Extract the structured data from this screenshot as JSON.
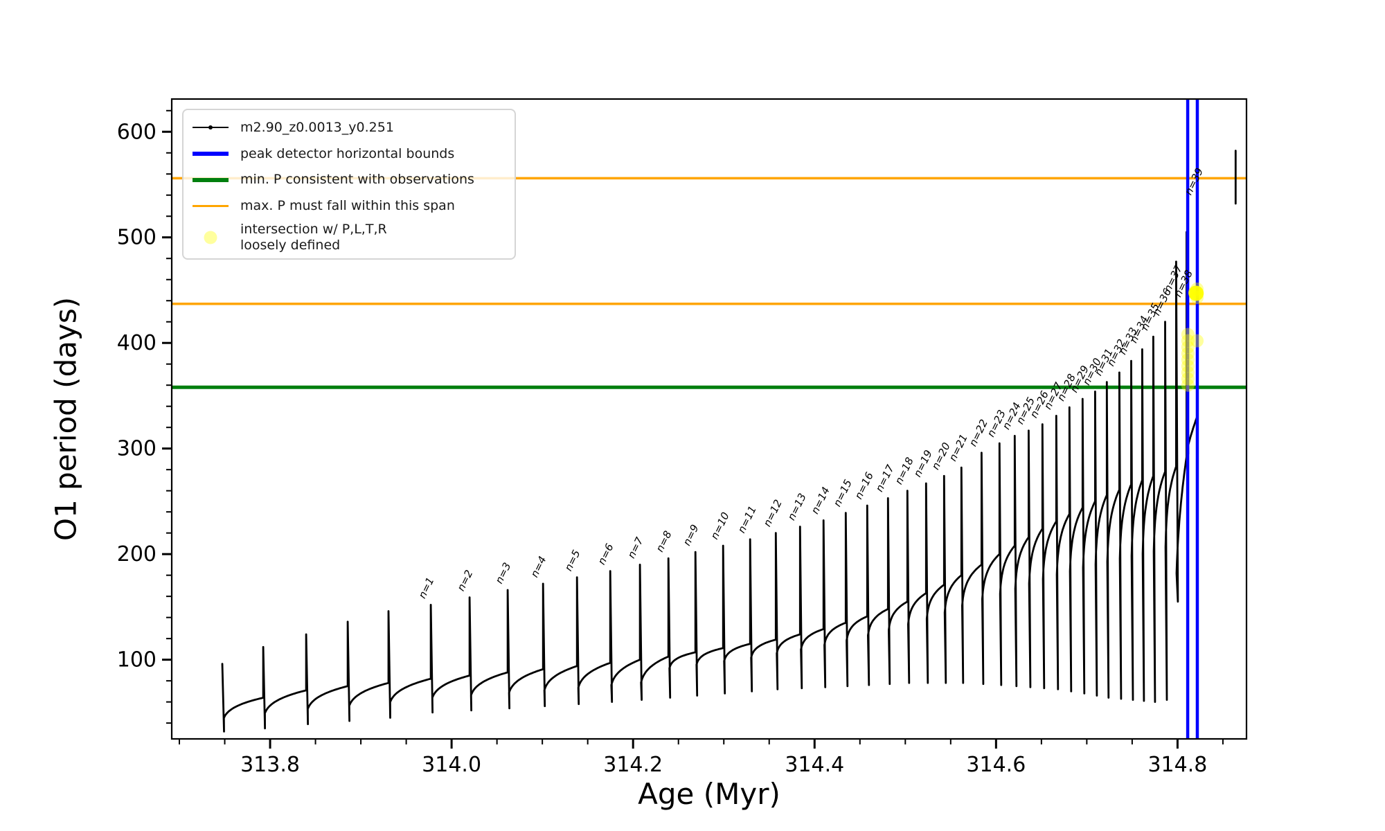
{
  "figure": {
    "xlabel": "Age (Myr)",
    "ylabel": "O1 period (days)"
  },
  "legend": {
    "entries": [
      {
        "kind": "line-marker",
        "color": "#000000",
        "label": "m2.90_z0.0013_y0.251"
      },
      {
        "kind": "thick-line",
        "color": "#0000ff",
        "label": "peak detector horizontal bounds"
      },
      {
        "kind": "thick-line",
        "color": "#007f0e",
        "label": "min. P consistent with observations"
      },
      {
        "kind": "line",
        "color": "#ffa500",
        "label": "max. P must fall within this span"
      },
      {
        "kind": "dot",
        "color": "rgba(255,255,0,0.38)",
        "label_line1": "intersection w/ P,L,T,R",
        "label_line2": "loosely defined"
      }
    ]
  },
  "chart_data": {
    "type": "line",
    "title": "",
    "xlabel": "Age (Myr)",
    "ylabel": "O1 period (days)",
    "xlim": [
      313.6916,
      314.876
    ],
    "ylim": [
      25,
      631
    ],
    "x_major_ticks": [
      313.8,
      314.0,
      314.2,
      314.4,
      314.6,
      314.8
    ],
    "x_minor_step": 0.05,
    "y_major_ticks": [
      100,
      200,
      300,
      400,
      500,
      600
    ],
    "y_minor_step": 20,
    "grid": false,
    "legend_position": "upper left",
    "series_label": "m2.90_z0.0013_y0.251",
    "colors": {
      "curve": "#000000",
      "bounds": "#0000ff",
      "min_p": "#007f0e",
      "max_p": "#ffa500",
      "intersection": "#ffff00"
    },
    "hlines": [
      {
        "y": 358,
        "color": "#007f0e",
        "width": 5,
        "meaning": "min. P consistent with observations"
      },
      {
        "y": 437,
        "color": "#ffa500",
        "width": 3.5,
        "meaning": "max. P span lower"
      },
      {
        "y": 556,
        "color": "#ffa500",
        "width": 3.5,
        "meaning": "max. P span upper"
      }
    ],
    "vlines": [
      {
        "x": 314.8112,
        "color": "#0000ff",
        "width": 4.5,
        "meaning": "peak detector left bound"
      },
      {
        "x": 314.8218,
        "color": "#0000ff",
        "width": 4.5,
        "meaning": "peak detector right bound"
      }
    ],
    "pulses_format": [
      "age_Myr",
      "peak_days",
      "dip_after_days",
      "shoulder_before_days",
      "n_label"
    ],
    "pulses": [
      [
        313.7473,
        96,
        32,
        60,
        null
      ],
      [
        313.7924,
        112,
        35,
        64,
        null
      ],
      [
        313.8397,
        124,
        39,
        71,
        null
      ],
      [
        313.8855,
        136,
        42,
        75,
        null
      ],
      [
        313.9305,
        146,
        45,
        78,
        null
      ],
      [
        313.9771,
        152,
        50,
        82,
        1
      ],
      [
        314.0198,
        159,
        52,
        85,
        2
      ],
      [
        314.0618,
        166,
        54,
        88,
        3
      ],
      [
        314.1008,
        172,
        56,
        91,
        4
      ],
      [
        314.1382,
        178,
        58,
        94,
        5
      ],
      [
        314.1748,
        184,
        60,
        97,
        6
      ],
      [
        314.2076,
        190,
        62,
        100,
        7
      ],
      [
        314.2389,
        196,
        64,
        103,
        8
      ],
      [
        314.2687,
        202,
        66,
        107,
        9
      ],
      [
        314.2992,
        208,
        68,
        111,
        10
      ],
      [
        314.329,
        214,
        70,
        115,
        11
      ],
      [
        314.3573,
        220,
        72,
        119,
        12
      ],
      [
        314.384,
        226,
        73,
        124,
        13
      ],
      [
        314.4099,
        232,
        74,
        129,
        14
      ],
      [
        314.4344,
        239,
        75,
        135,
        15
      ],
      [
        314.458,
        246,
        76,
        141,
        16
      ],
      [
        314.4809,
        253,
        77,
        148,
        17
      ],
      [
        314.5023,
        260,
        78,
        155,
        18
      ],
      [
        314.5229,
        267,
        78,
        163,
        19
      ],
      [
        314.5427,
        274,
        78,
        171,
        20
      ],
      [
        314.5618,
        282,
        78,
        180,
        21
      ],
      [
        314.584,
        296,
        77,
        190,
        22
      ],
      [
        314.6038,
        305,
        76,
        200,
        23
      ],
      [
        314.6206,
        312,
        75,
        208,
        24
      ],
      [
        314.6359,
        317,
        74,
        216,
        25
      ],
      [
        314.6511,
        323,
        73,
        224,
        26
      ],
      [
        314.6664,
        331,
        72,
        231,
        27
      ],
      [
        314.6809,
        339,
        70,
        238,
        28
      ],
      [
        314.6954,
        347,
        68,
        244,
        29
      ],
      [
        314.7092,
        354,
        66,
        250,
        30
      ],
      [
        314.7221,
        363,
        64,
        256,
        31
      ],
      [
        314.7359,
        372,
        63,
        261,
        32
      ],
      [
        314.7489,
        383,
        62,
        266,
        33
      ],
      [
        314.7611,
        394,
        61,
        270,
        34
      ],
      [
        314.7733,
        406,
        60,
        274,
        35
      ],
      [
        314.7863,
        420,
        62,
        278,
        36
      ],
      [
        314.7985,
        477,
        155,
        283,
        37
      ],
      [
        314.8099,
        505,
        295,
        292,
        38
      ],
      [
        314.8215,
        582,
        null,
        330,
        39
      ]
    ],
    "tail_segment": {
      "age": 314.864,
      "v_top": 582,
      "v_bottom": 532
    },
    "scatter_intersection": [
      {
        "age": 314.8114,
        "v": 408
      },
      {
        "age": 314.8114,
        "v": 402
      },
      {
        "age": 314.8114,
        "v": 396
      },
      {
        "age": 314.8114,
        "v": 390
      },
      {
        "age": 314.8114,
        "v": 384
      },
      {
        "age": 314.8114,
        "v": 378
      },
      {
        "age": 314.8114,
        "v": 372
      },
      {
        "age": 314.8114,
        "v": 366
      },
      {
        "age": 314.8114,
        "v": 360
      },
      {
        "age": 314.819,
        "v": 448
      },
      {
        "age": 314.8215,
        "v": 451
      },
      {
        "age": 314.8215,
        "v": 447
      },
      {
        "age": 314.8215,
        "v": 443
      },
      {
        "age": 314.8215,
        "v": 402
      }
    ],
    "n_label_prefix": "n="
  }
}
